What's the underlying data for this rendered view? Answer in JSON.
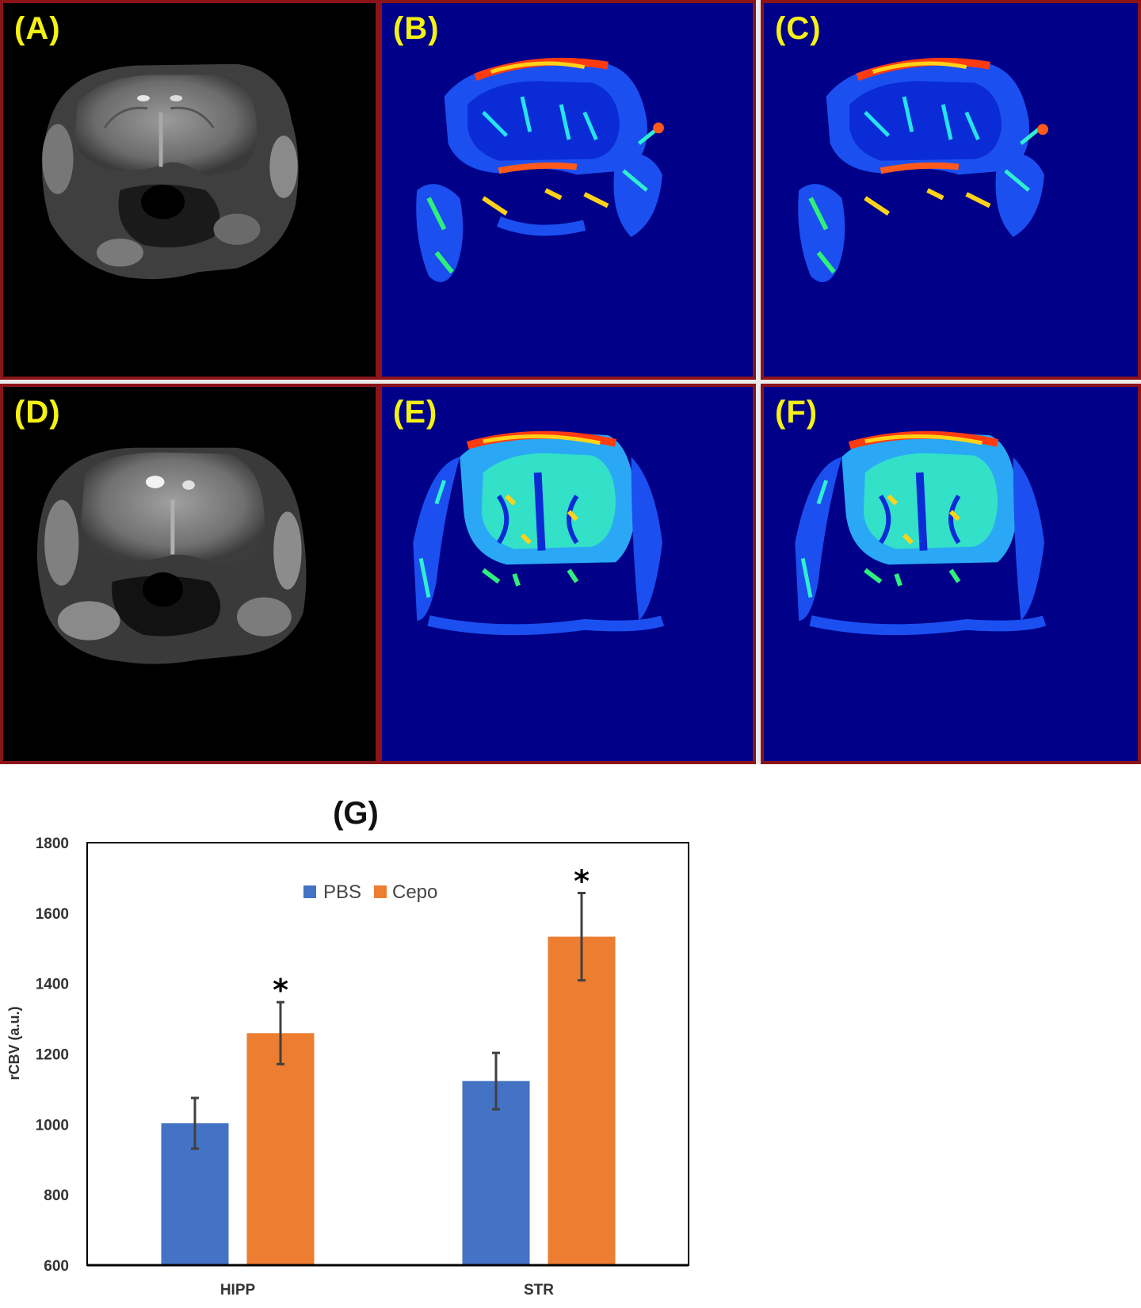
{
  "panels": [
    {
      "id": "A",
      "label": "(A)",
      "kind": "mri"
    },
    {
      "id": "B",
      "label": "(B)",
      "kind": "map"
    },
    {
      "id": "C",
      "label": "(C)",
      "kind": "map"
    },
    {
      "id": "D",
      "label": "(D)",
      "kind": "mri"
    },
    {
      "id": "E",
      "label": "(E)",
      "kind": "map"
    },
    {
      "id": "F",
      "label": "(F)",
      "kind": "map"
    }
  ],
  "colors": {
    "panel_border": "#8b1419",
    "label_yellow": "#f5f211",
    "map_background": "#000088",
    "pbs": "#4472c4",
    "cepo": "#ed7d31"
  },
  "chart_data": {
    "type": "bar",
    "title": "(G)",
    "xlabel": "",
    "ylabel": "rCBV (a.u.)",
    "categories": [
      "HIPP",
      "STR"
    ],
    "series": [
      {
        "name": "PBS",
        "color": "#4472c4",
        "values": [
          1003,
          1123
        ],
        "errors": [
          72,
          80
        ]
      },
      {
        "name": "Cepo",
        "color": "#ed7d31",
        "values": [
          1259,
          1533
        ],
        "errors": [
          88,
          124
        ]
      }
    ],
    "significance": [
      {
        "category": "HIPP",
        "series": "Cepo",
        "mark": "*"
      },
      {
        "category": "STR",
        "series": "Cepo",
        "mark": "*"
      }
    ],
    "ylim": [
      600,
      1800
    ],
    "yticks": [
      600,
      800,
      1000,
      1200,
      1400,
      1600,
      1800
    ],
    "legend_position": "top-center",
    "grid": false
  }
}
